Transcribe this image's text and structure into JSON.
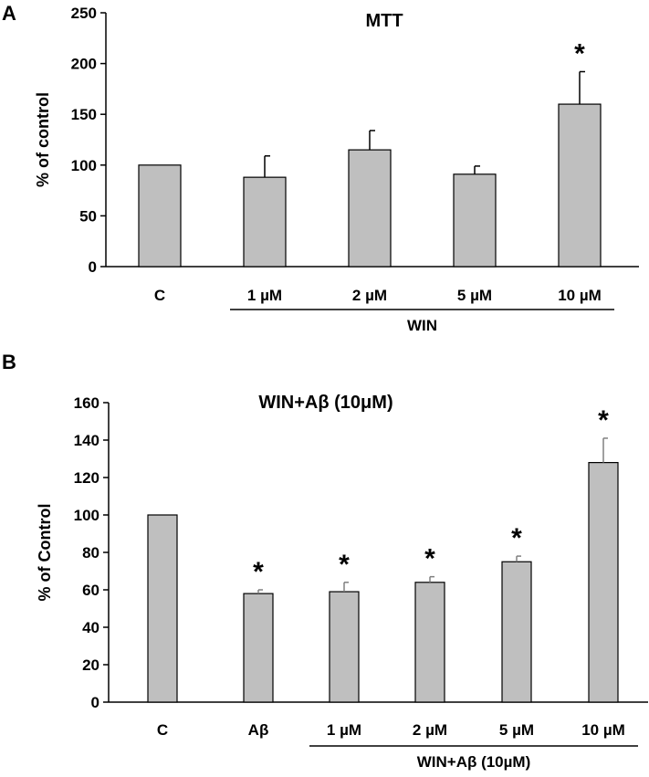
{
  "chart_data": [
    {
      "panel": "A",
      "type": "bar",
      "title": "MTT",
      "ylabel": "% of  control",
      "ylim": [
        0,
        250
      ],
      "yticks": [
        0,
        50,
        100,
        150,
        200,
        250
      ],
      "categories": [
        "C",
        "1 µM",
        "2 µM",
        "5 µM",
        "10 µM"
      ],
      "values": [
        100,
        88,
        115,
        91,
        160
      ],
      "errors": [
        0,
        21,
        19,
        8,
        32
      ],
      "significant": [
        false,
        false,
        false,
        false,
        true
      ],
      "significance_marker": "*",
      "group_label": "WIN",
      "group_span": [
        1,
        4
      ],
      "grid": false,
      "colors": {
        "bar": "#bfbfbf",
        "bar_edge": "#000000",
        "error": "#000000"
      }
    },
    {
      "panel": "B",
      "type": "bar",
      "title": "WIN+Aβ (10μM)",
      "ylabel": "% of Control",
      "ylim": [
        0,
        160
      ],
      "yticks": [
        0,
        20,
        40,
        60,
        80,
        100,
        120,
        140,
        160
      ],
      "categories": [
        "C",
        "Aβ",
        "1 µM",
        "2 µM",
        "5 µM",
        "10 µM"
      ],
      "values": [
        100,
        58,
        59,
        64,
        75,
        128
      ],
      "errors": [
        0,
        2,
        5,
        3,
        3,
        13
      ],
      "significant": [
        false,
        true,
        true,
        true,
        true,
        true
      ],
      "significance_marker": "*",
      "group_label": "WIN+Aβ (10µM)",
      "group_span": [
        2,
        5
      ],
      "grid": false,
      "colors": {
        "bar": "#bfbfbf",
        "bar_edge": "#000000",
        "error": "#808080"
      }
    }
  ]
}
